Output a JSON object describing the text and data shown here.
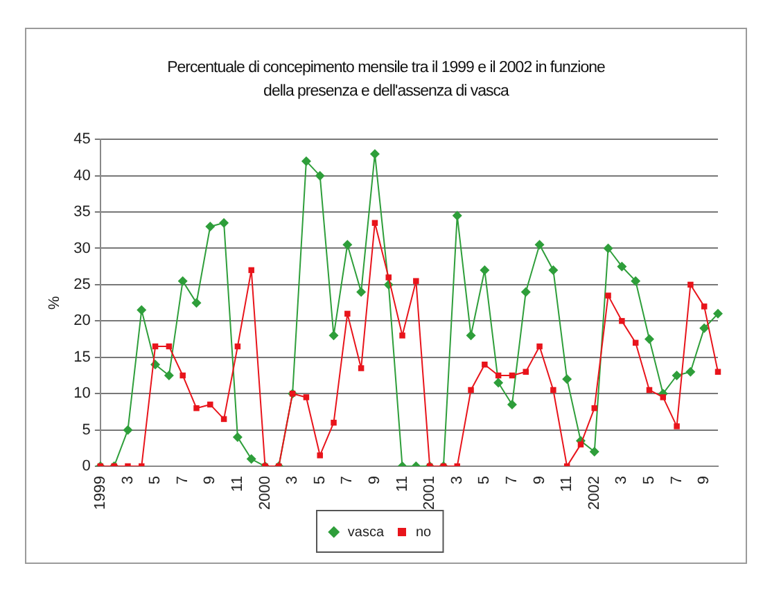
{
  "chart_data": {
    "type": "line",
    "title": "Percentuale  di concepimento mensile tra il 1999 e il 2002 in funzione della presenza e dell'assenza di vasca",
    "ylabel": "%",
    "categories": [
      "1999",
      null,
      "3",
      null,
      "5",
      null,
      "7",
      null,
      "9",
      null,
      "11",
      null,
      "2000",
      null,
      "3",
      null,
      "5",
      null,
      "7",
      null,
      "9",
      null,
      "11",
      null,
      "2001",
      null,
      "3",
      null,
      "5",
      null,
      "7",
      null,
      "9",
      null,
      "11",
      null,
      "2002",
      null,
      "3",
      null,
      "5",
      null,
      "7",
      null,
      "9",
      null
    ],
    "series": [
      {
        "name": "vasca",
        "color": "#2e9e3a",
        "marker": "diamond",
        "values": [
          0,
          0,
          5,
          21.5,
          14,
          12.5,
          25.5,
          22.5,
          33,
          33.5,
          4,
          1,
          0,
          0,
          10,
          42,
          40,
          18,
          30.5,
          24,
          43,
          25,
          0,
          0,
          0,
          0,
          34.5,
          18,
          27,
          11.5,
          8.5,
          24,
          30.5,
          27,
          12,
          3.5,
          2,
          30,
          27.5,
          25.5,
          17.5,
          10,
          12.5,
          13,
          19,
          21
        ]
      },
      {
        "name": "no",
        "color": "#e8141b",
        "marker": "square",
        "values": [
          0,
          0,
          0,
          0,
          16.5,
          16.5,
          12.5,
          8,
          8.5,
          6.5,
          16.5,
          27,
          0,
          0,
          10,
          9.5,
          1.5,
          6,
          21,
          13.5,
          33.5,
          26,
          18,
          25.5,
          0,
          0,
          0,
          10.5,
          14,
          12.5,
          12.5,
          13,
          16.5,
          10.5,
          0,
          3,
          8,
          23.5,
          20,
          17,
          10.5,
          9.5,
          5.5,
          25,
          22,
          13
        ]
      }
    ],
    "ylim": [
      0,
      45
    ],
    "yticks": [
      0,
      5,
      10,
      15,
      20,
      25,
      30,
      35,
      40,
      45
    ],
    "grid": "y",
    "legend": "bottom",
    "line_style": "solid"
  }
}
